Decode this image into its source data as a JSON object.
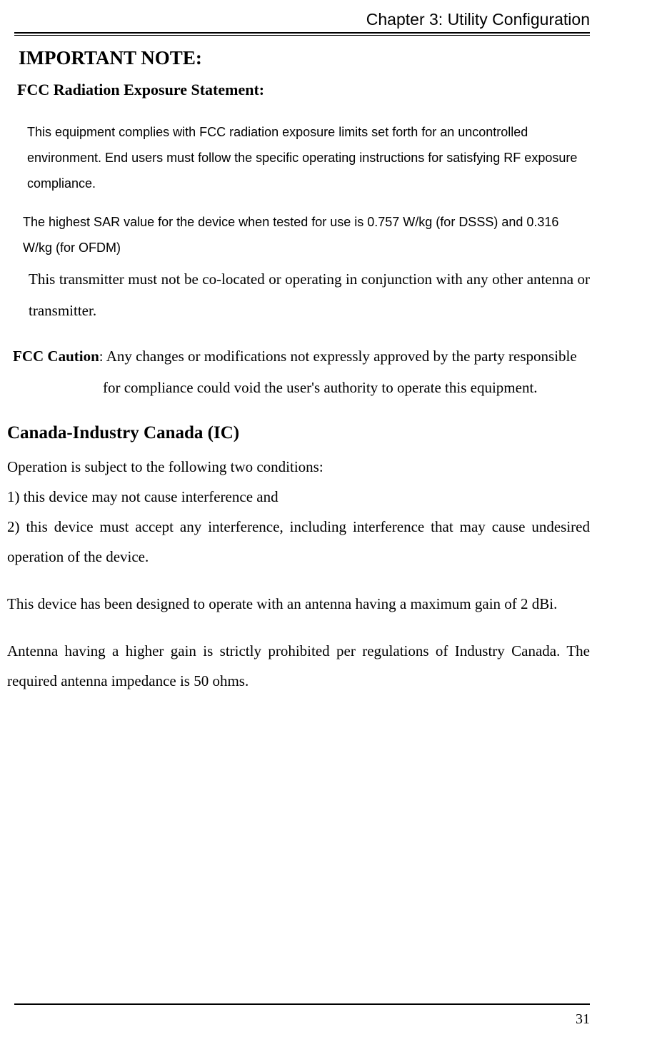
{
  "header": {
    "chapter": "Chapter 3: Utility Configuration"
  },
  "headings": {
    "important": "IMPORTANT NOTE:",
    "fcc_radiation": "FCC Radiation Exposure Statement:",
    "canada": "Canada-Industry Canada (IC)"
  },
  "paragraphs": {
    "p1": "This equipment complies with FCC radiation exposure limits set forth for an uncontrolled environment. End users must follow the specific operating instructions for satisfying RF exposure compliance.",
    "p2": "The highest SAR value for the device when tested for use is 0.757 W/kg (for DSSS) and 0.316 W/kg (for OFDM)",
    "p3": "This transmitter must not be co-located or operating in conjunction with any other antenna or transmitter.",
    "caution_label": "FCC Caution",
    "caution_line1": ": Any changes or modifications not expressly approved by the party responsible",
    "caution_line2": "for compliance could void the user's authority to operate this equipment.",
    "ic1": "Operation is subject to the following two conditions:",
    "ic2": "1) this device may not cause interference and",
    "ic3": "2) this device must accept any interference, including interference that may cause undesired operation of the device.",
    "ic4": "This device has been designed to operate with an antenna having a maximum gain of 2 dBi.",
    "ic5": "Antenna having a higher gain is strictly prohibited per regulations of Industry Canada. The required antenna impedance is 50 ohms."
  },
  "footer": {
    "page": "31"
  }
}
